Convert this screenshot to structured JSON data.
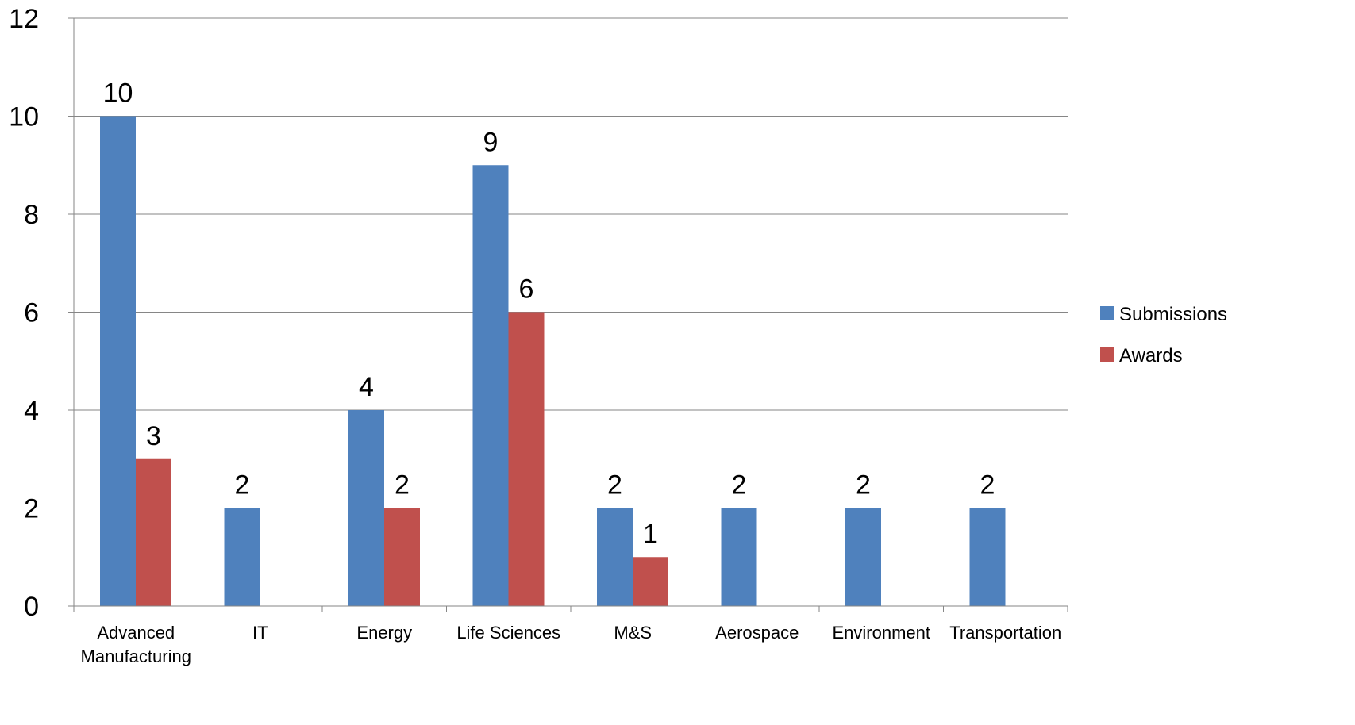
{
  "chart_data": {
    "type": "bar",
    "title": "",
    "xlabel": "",
    "ylabel": "",
    "categories": [
      "Advanced Manufacturing",
      "IT",
      "Energy",
      "Life Sciences",
      "M&S",
      "Aerospace",
      "Environment",
      "Transportation"
    ],
    "category_lines": [
      [
        "Advanced",
        "Manufacturing"
      ],
      [
        "IT"
      ],
      [
        "Energy"
      ],
      [
        "Life Sciences"
      ],
      [
        "M&S"
      ],
      [
        "Aerospace"
      ],
      [
        "Environment"
      ],
      [
        "Transportation"
      ]
    ],
    "series": [
      {
        "name": "Submissions",
        "color": "#4F81BD",
        "values": [
          10,
          2,
          4,
          9,
          2,
          2,
          2,
          2
        ]
      },
      {
        "name": "Awards",
        "color": "#C0504D",
        "values": [
          3,
          null,
          2,
          6,
          1,
          null,
          null,
          null
        ]
      }
    ],
    "ylim": [
      0,
      12
    ],
    "yticks": [
      "0",
      "2",
      "4",
      "6",
      "8",
      "10",
      "12"
    ],
    "grid": true,
    "legend_position": "right",
    "data_labels": true
  }
}
